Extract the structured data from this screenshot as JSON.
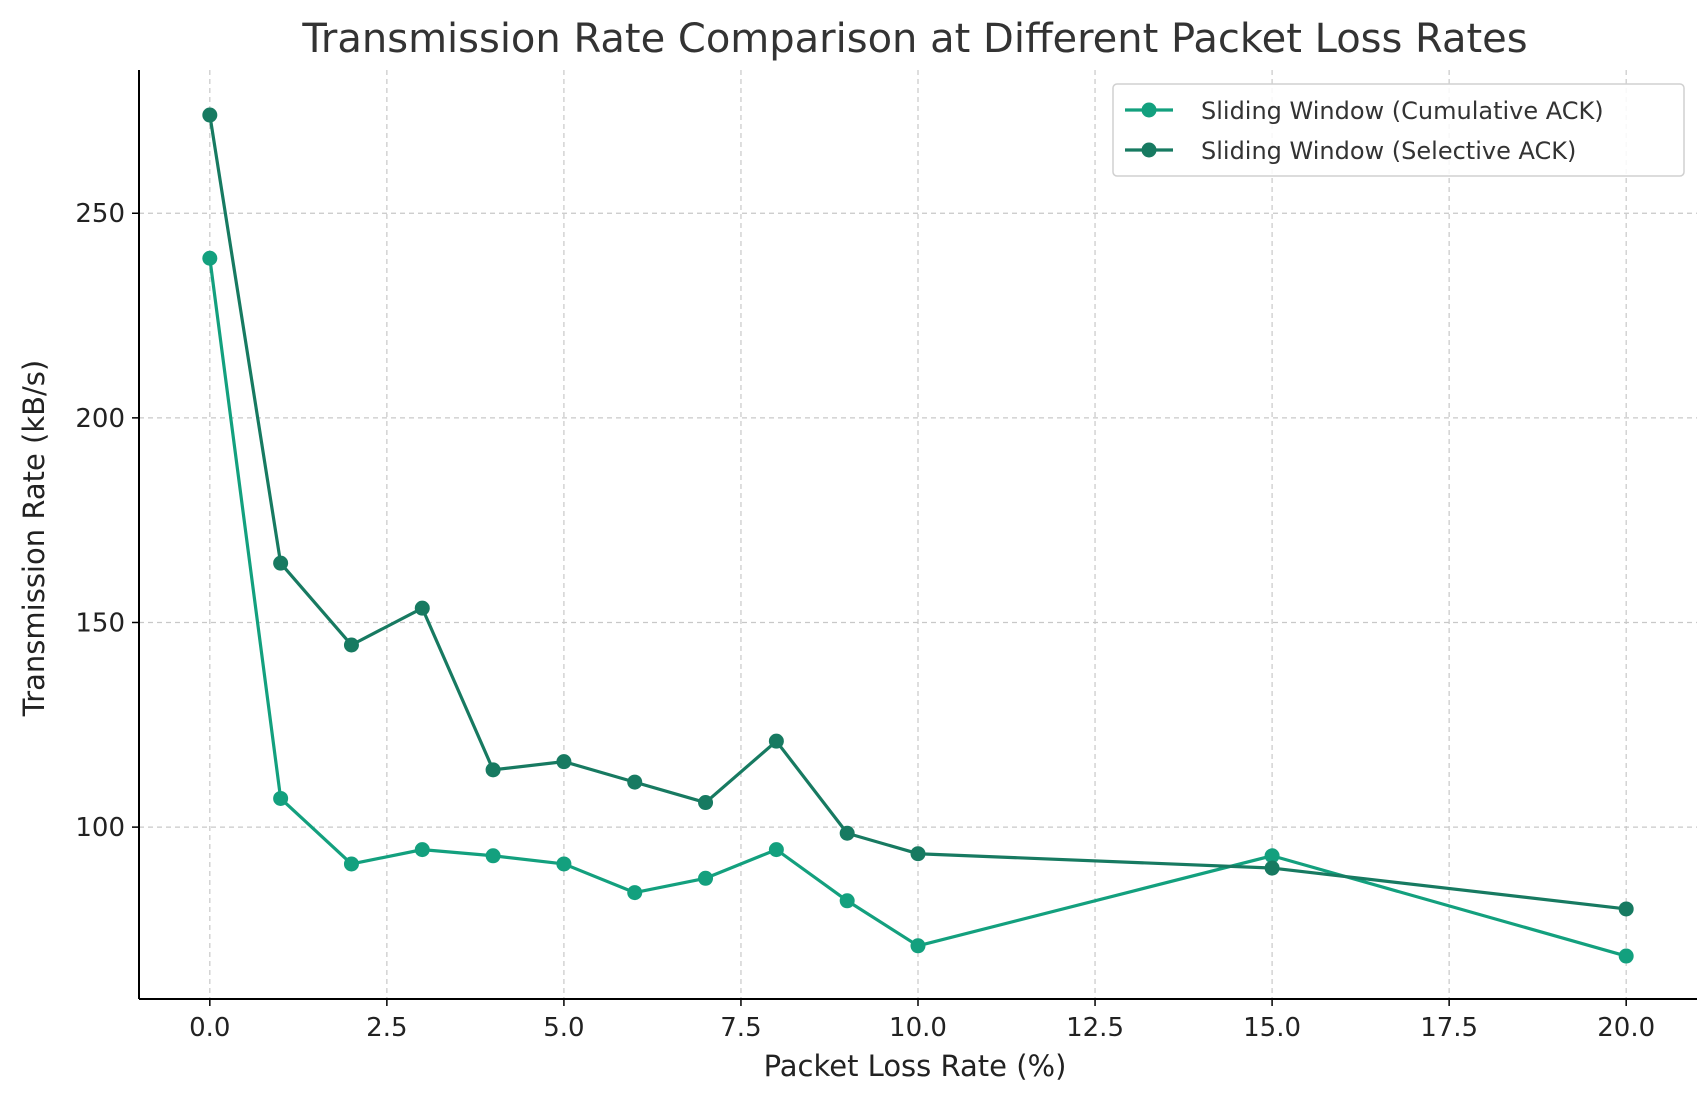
{
  "chart_data": {
    "type": "line",
    "title": "Transmission Rate Comparison at Different Packet Loss Rates",
    "xlabel": "Packet Loss Rate (%)",
    "ylabel": "Transmission Rate (kB/s)",
    "xlim": [
      -1.0,
      21.0
    ],
    "ylim": [
      58,
      285
    ],
    "xticks": [
      0.0,
      2.5,
      5.0,
      7.5,
      10.0,
      12.5,
      15.0,
      17.5,
      20.0
    ],
    "xtick_labels": [
      "0.0",
      "2.5",
      "5.0",
      "7.5",
      "10.0",
      "12.5",
      "15.0",
      "17.5",
      "20.0"
    ],
    "yticks": [
      100,
      150,
      200,
      250
    ],
    "ytick_labels": [
      "100",
      "150",
      "200",
      "250"
    ],
    "grid": true,
    "legend_position": "top-right",
    "x": [
      0,
      1,
      2,
      3,
      4,
      5,
      6,
      7,
      8,
      9,
      10,
      15,
      20
    ],
    "series": [
      {
        "name": "Sliding Window (Cumulative ACK)",
        "color": "#13a07e",
        "marker": "circle",
        "values": [
          239,
          107,
          91,
          94.5,
          93,
          91,
          84,
          87.5,
          94.5,
          82,
          71,
          93,
          68.5
        ]
      },
      {
        "name": "Sliding Window (Selective ACK)",
        "color": "#177a61",
        "marker": "circle",
        "values": [
          274,
          164.5,
          144.5,
          153.5,
          114,
          116,
          111,
          106,
          121,
          98.5,
          93.5,
          90,
          80
        ]
      }
    ]
  }
}
